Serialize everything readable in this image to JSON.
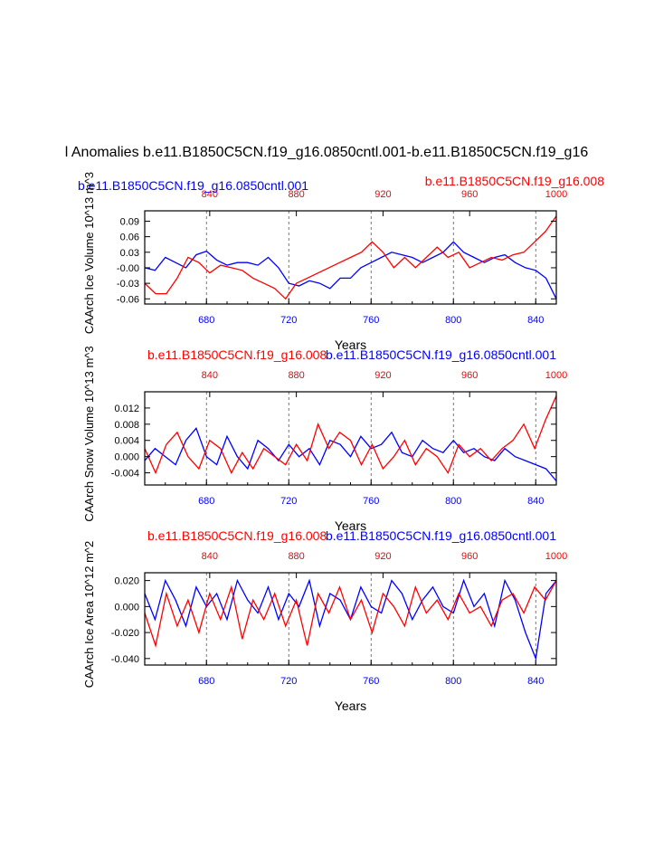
{
  "title": "l Anomalies b.e11.B1850C5CN.f19_g16.0850cntl.001-b.e11.B1850C5CN.f19_g16",
  "colors": {
    "control": "#0000ff",
    "experiment": "#ff0000",
    "axis": "#000000",
    "grid": "#555555"
  },
  "header_control_label": "b.e11.B1850C5CN.f19_g16.0850cntl.001",
  "header_experiment_label": "b.e11.B1850C5CN.f19_g16.008",
  "chart_data": [
    {
      "type": "line",
      "ylabel": "CAArch Ice Volume 10^13 m^3",
      "xlabel": "Years",
      "xlim_bottom": [
        650,
        850
      ],
      "xlim_top": [
        810,
        1000
      ],
      "xticks_bottom": [
        "680",
        "720",
        "760",
        "800",
        "840"
      ],
      "xticks_top": [
        "840",
        "880",
        "920",
        "960",
        "1000"
      ],
      "ylim": [
        -0.07,
        0.11
      ],
      "yticks": [
        "0.09",
        "0.06",
        "0.03",
        "-0.00",
        "-0.03",
        "-0.06"
      ],
      "series": [
        {
          "name": "b.e11.B1850C5CN.f19_g16.0850cntl.001",
          "axis": "bottom",
          "color": "blue",
          "x": [
            650,
            655,
            660,
            665,
            670,
            675,
            680,
            685,
            690,
            695,
            700,
            705,
            710,
            715,
            720,
            725,
            730,
            735,
            740,
            745,
            750,
            755,
            760,
            765,
            770,
            775,
            780,
            785,
            790,
            795,
            800,
            805,
            810,
            815,
            820,
            825,
            830,
            835,
            840,
            845,
            850
          ],
          "y": [
            0.0,
            -0.005,
            0.02,
            0.01,
            0.0,
            0.025,
            0.032,
            0.015,
            0.005,
            0.01,
            0.01,
            0.005,
            0.02,
            0.0,
            -0.03,
            -0.035,
            -0.025,
            -0.03,
            -0.04,
            -0.02,
            -0.02,
            0.0,
            0.01,
            0.02,
            0.03,
            0.025,
            0.02,
            0.01,
            0.02,
            0.03,
            0.05,
            0.03,
            0.02,
            0.01,
            0.02,
            0.025,
            0.01,
            0.0,
            -0.005,
            -0.02,
            -0.06
          ]
        },
        {
          "name": "b.e11.B1850C5CN.f19_g16.008",
          "axis": "top",
          "color": "red",
          "x": [
            810,
            815,
            820,
            825,
            830,
            835,
            840,
            845,
            850,
            855,
            860,
            865,
            870,
            875,
            880,
            885,
            890,
            895,
            900,
            905,
            910,
            915,
            920,
            925,
            930,
            935,
            940,
            945,
            950,
            955,
            960,
            965,
            970,
            975,
            980,
            985,
            990,
            995,
            1000
          ],
          "y": [
            -0.03,
            -0.05,
            -0.05,
            -0.02,
            0.02,
            0.01,
            -0.01,
            0.005,
            0.0,
            -0.005,
            -0.02,
            -0.03,
            -0.04,
            -0.06,
            -0.03,
            -0.02,
            -0.01,
            0.0,
            0.01,
            0.02,
            0.03,
            0.05,
            0.03,
            0.0,
            0.02,
            0.0,
            0.02,
            0.04,
            0.02,
            0.03,
            0.0,
            0.01,
            0.02,
            0.015,
            0.025,
            0.03,
            0.05,
            0.07,
            0.1
          ]
        }
      ]
    },
    {
      "type": "line",
      "ylabel": "CAArch Snow Volume 10^13 m^3",
      "xlabel": "Years",
      "xlim_bottom": [
        650,
        850
      ],
      "xlim_top": [
        810,
        1000
      ],
      "xticks_bottom": [
        "680",
        "720",
        "760",
        "800",
        "840"
      ],
      "xticks_top": [
        "840",
        "880",
        "920",
        "960",
        "1000"
      ],
      "ylim": [
        -0.007,
        0.016
      ],
      "yticks": [
        "0.012",
        "0.008",
        "0.004",
        "0.000",
        "-0.004"
      ],
      "series": [
        {
          "name": "b.e11.B1850C5CN.f19_g16.0850cntl.001",
          "axis": "bottom",
          "color": "blue",
          "x": [
            650,
            655,
            660,
            665,
            670,
            675,
            680,
            685,
            690,
            695,
            700,
            705,
            710,
            715,
            720,
            725,
            730,
            735,
            740,
            745,
            750,
            755,
            760,
            765,
            770,
            775,
            780,
            785,
            790,
            795,
            800,
            805,
            810,
            815,
            820,
            825,
            830,
            835,
            840,
            845,
            850
          ],
          "y": [
            -0.001,
            0.002,
            0.0,
            -0.002,
            0.004,
            0.007,
            0.0,
            -0.002,
            0.005,
            0.0,
            -0.003,
            0.004,
            0.002,
            -0.001,
            0.003,
            0.0,
            0.002,
            -0.002,
            0.004,
            0.003,
            0.0,
            0.005,
            0.002,
            0.003,
            0.006,
            0.001,
            0.0,
            0.004,
            0.002,
            0.001,
            0.004,
            0.001,
            0.002,
            0.0,
            -0.001,
            0.002,
            0.0,
            -0.001,
            -0.002,
            -0.003,
            -0.006
          ]
        },
        {
          "name": "b.e11.B1850C5CN.f19_g16.008",
          "axis": "top",
          "color": "red",
          "x": [
            810,
            815,
            820,
            825,
            830,
            835,
            840,
            845,
            850,
            855,
            860,
            865,
            870,
            875,
            880,
            885,
            890,
            895,
            900,
            905,
            910,
            915,
            920,
            925,
            930,
            935,
            940,
            945,
            950,
            955,
            960,
            965,
            970,
            975,
            980,
            985,
            990,
            995,
            1000
          ],
          "y": [
            0.002,
            -0.004,
            0.003,
            0.006,
            0.0,
            -0.003,
            0.004,
            0.002,
            -0.004,
            0.001,
            -0.003,
            0.002,
            0.0,
            -0.002,
            0.003,
            -0.001,
            0.008,
            0.002,
            0.006,
            0.004,
            -0.002,
            0.003,
            -0.003,
            0.0,
            0.004,
            -0.002,
            0.002,
            0.0,
            -0.004,
            0.003,
            0.0,
            0.002,
            -0.001,
            0.002,
            0.004,
            0.008,
            0.002,
            0.009,
            0.015
          ]
        }
      ]
    },
    {
      "type": "line",
      "ylabel": "CAArch Ice Area 10^12 m^2",
      "xlabel": "Years",
      "xlim_bottom": [
        650,
        850
      ],
      "xlim_top": [
        810,
        1000
      ],
      "xticks_bottom": [
        "680",
        "720",
        "760",
        "800",
        "840"
      ],
      "xticks_top": [
        "840",
        "880",
        "920",
        "960",
        "1000"
      ],
      "ylim": [
        -0.045,
        0.026
      ],
      "yticks": [
        "0.020",
        "0.000",
        "-0.020",
        "-0.040"
      ],
      "series": [
        {
          "name": "b.e11.B1850C5CN.f19_g16.0850cntl.001",
          "axis": "bottom",
          "color": "blue",
          "x": [
            650,
            655,
            660,
            665,
            670,
            675,
            680,
            685,
            690,
            695,
            700,
            705,
            710,
            715,
            720,
            725,
            730,
            735,
            740,
            745,
            750,
            755,
            760,
            765,
            770,
            775,
            780,
            785,
            790,
            795,
            800,
            805,
            810,
            815,
            820,
            825,
            830,
            835,
            840,
            845,
            850
          ],
          "y": [
            0.01,
            -0.01,
            0.02,
            0.005,
            -0.015,
            0.015,
            0.0,
            0.01,
            -0.01,
            0.02,
            0.005,
            -0.005,
            0.015,
            -0.01,
            0.01,
            0.0,
            0.02,
            -0.015,
            0.01,
            0.005,
            -0.01,
            0.015,
            0.0,
            -0.005,
            0.02,
            0.01,
            -0.01,
            0.005,
            0.015,
            0.0,
            -0.005,
            0.02,
            0.0,
            0.01,
            -0.015,
            0.02,
            0.005,
            -0.02,
            -0.04,
            0.01,
            0.02
          ]
        },
        {
          "name": "b.e11.B1850C5CN.f19_g16.008",
          "axis": "top",
          "color": "red",
          "x": [
            810,
            815,
            820,
            825,
            830,
            835,
            840,
            845,
            850,
            855,
            860,
            865,
            870,
            875,
            880,
            885,
            890,
            895,
            900,
            905,
            910,
            915,
            920,
            925,
            930,
            935,
            940,
            945,
            950,
            955,
            960,
            965,
            970,
            975,
            980,
            985,
            990,
            995,
            1000
          ],
          "y": [
            -0.005,
            -0.03,
            0.01,
            -0.015,
            0.005,
            -0.02,
            0.01,
            -0.01,
            0.015,
            -0.025,
            0.005,
            -0.01,
            0.01,
            -0.015,
            0.005,
            -0.03,
            0.01,
            -0.005,
            0.015,
            -0.01,
            0.005,
            -0.02,
            0.01,
            0.0,
            -0.015,
            0.015,
            -0.005,
            0.005,
            -0.01,
            0.01,
            -0.005,
            0.0,
            -0.015,
            0.005,
            0.01,
            -0.005,
            0.015,
            0.005,
            0.02
          ]
        }
      ]
    }
  ]
}
